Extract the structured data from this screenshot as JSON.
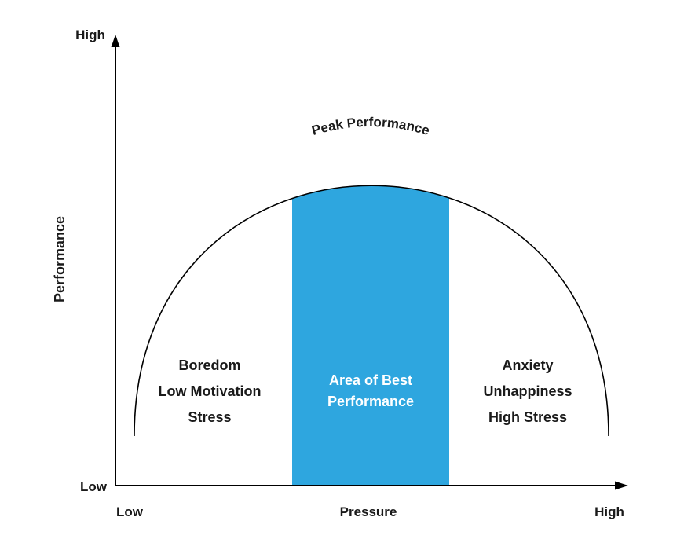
{
  "axes": {
    "y_title": "Performance",
    "y_high": "High",
    "y_low": "Low",
    "x_title": "Pressure",
    "x_low": "Low",
    "x_high": "High"
  },
  "peak_label": "Peak Performance",
  "zones": {
    "left": [
      "Boredom",
      "Low Motivation",
      "Stress"
    ],
    "middle": [
      "Area of Best",
      "Performance"
    ],
    "right": [
      "Anxiety",
      "Unhappiness",
      "High Stress"
    ]
  },
  "colors": {
    "best_area": "#2ea6df",
    "curve": "#000000",
    "axis": "#000000",
    "text": "#1a1a1a"
  }
}
